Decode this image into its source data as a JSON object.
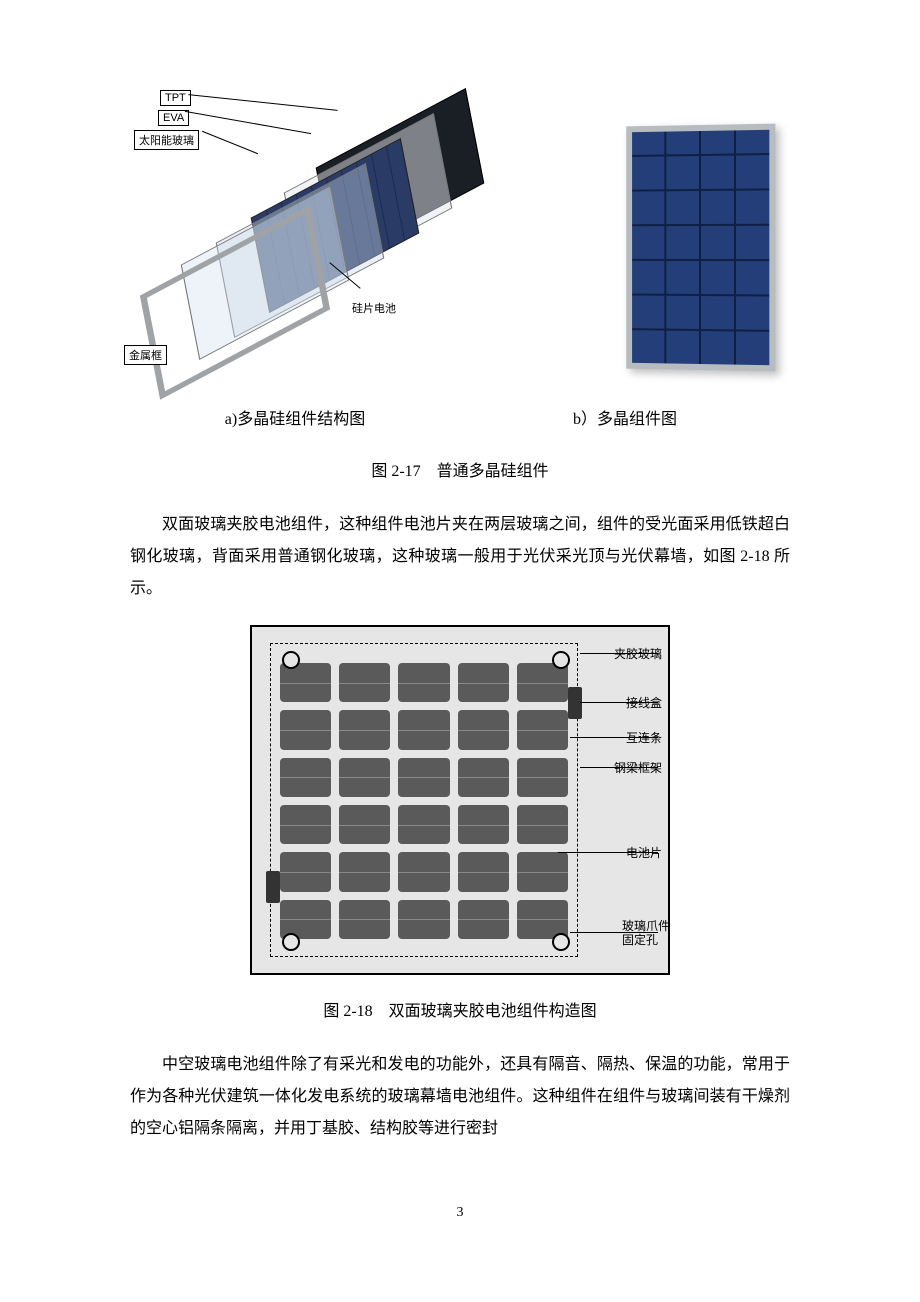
{
  "fig217": {
    "labels": {
      "tpt": "TPT",
      "eva": "EVA",
      "solar_glass": "太阳能玻璃",
      "si_cell": "硅片电池",
      "metal_frame": "金属框"
    },
    "subcaption_a": "a)多晶硅组件结构图",
    "subcaption_b": "b）多晶组件图",
    "caption": "图 2-17　普通多晶硅组件",
    "panel": {
      "frame_color": "#b7bcc0",
      "cell_color": "#233e78",
      "grid_color": "#0f1f45",
      "cols": 4,
      "rows": 7
    }
  },
  "paragraph1": "双面玻璃夹胶电池组件，这种组件电池片夹在两层玻璃之间，组件的受光面采用低铁超白钢化玻璃，背面采用普通钢化玻璃，这种玻璃一般用于光伏采光顶与光伏幕墙，如图 2-18 所示。",
  "fig218": {
    "caption": "图 2-18　双面玻璃夹胶电池组件构造图",
    "labels": {
      "laminated_glass": "夹胶玻璃",
      "junction_box": "接线盒",
      "interconnect": "互连条",
      "steel_frame": "钢梁框架",
      "cell": "电池片",
      "claw_hole": "玻璃爪件\n固定孔"
    },
    "grid": {
      "cols": 5,
      "rows": 6
    },
    "colors": {
      "bg": "#e6e6e6",
      "cell": "#5a5a5a",
      "border": "#000000"
    }
  },
  "paragraph2": "中空玻璃电池组件除了有采光和发电的功能外，还具有隔音、隔热、保温的功能，常用于作为各种光伏建筑一体化发电系统的玻璃幕墙电池组件。这种组件在组件与玻璃间装有干燥剂的空心铝隔条隔离，并用丁基胶、结构胶等进行密封",
  "page_number": "3"
}
